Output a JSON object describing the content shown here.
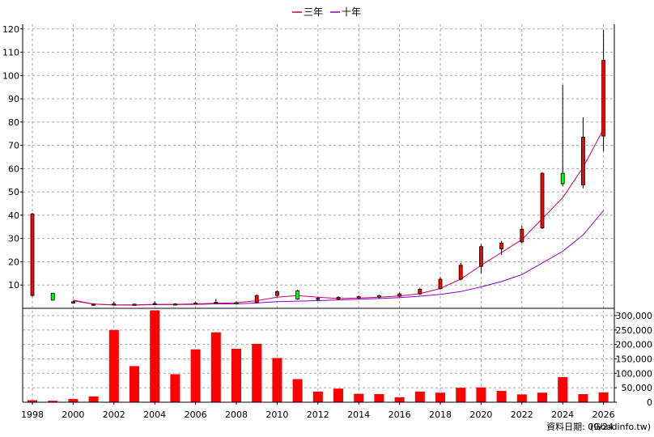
{
  "chart_data": [
    {
      "type": "candlestick",
      "legend": {
        "placement": "top-center",
        "entries": [
          "三年",
          "十年"
        ]
      },
      "x_ticks": [
        "1998",
        "2000",
        "2002",
        "2004",
        "2006",
        "2008",
        "2010",
        "2012",
        "2014",
        "2016",
        "2018",
        "2020",
        "2022",
        "2024",
        "2026"
      ],
      "y_ticks": [
        "10",
        "20",
        "30",
        "40",
        "50",
        "60",
        "70",
        "80",
        "90",
        "100",
        "110",
        "120"
      ],
      "ylim": [
        0,
        122
      ],
      "grid": true,
      "colors": {
        "up": "#ff0000",
        "down": "#00ff00",
        "ma3": "#cc0066",
        "ma10": "#8800cc"
      },
      "candles": [
        {
          "year": 1998,
          "open": 5.5,
          "close": 40.5,
          "high": 41,
          "low": 5
        },
        {
          "year": 1999,
          "open": 6.5,
          "close": 3.5,
          "high": 6.5,
          "low": 3.5
        },
        {
          "year": 2000,
          "open": 2.2,
          "close": 2.8,
          "high": 3.2,
          "low": 2.0
        },
        {
          "year": 2001,
          "open": 1.6,
          "close": 1.8,
          "high": 2.0,
          "low": 1.4
        },
        {
          "year": 2002,
          "open": 1.6,
          "close": 1.9,
          "high": 2.8,
          "low": 1.2
        },
        {
          "year": 2003,
          "open": 1.6,
          "close": 1.8,
          "high": 2.0,
          "low": 1.3
        },
        {
          "year": 2004,
          "open": 1.8,
          "close": 2.1,
          "high": 3.0,
          "low": 1.4
        },
        {
          "year": 2005,
          "open": 1.6,
          "close": 1.9,
          "high": 2.2,
          "low": 1.3
        },
        {
          "year": 2006,
          "open": 2.0,
          "close": 2.3,
          "high": 2.6,
          "low": 1.7
        },
        {
          "year": 2007,
          "open": 2.2,
          "close": 2.6,
          "high": 4.0,
          "low": 1.8
        },
        {
          "year": 2008,
          "open": 2.4,
          "close": 2.1,
          "high": 3.0,
          "low": 1.6
        },
        {
          "year": 2009,
          "open": 2.5,
          "close": 5.5,
          "high": 6.0,
          "low": 2.2
        },
        {
          "year": 2010,
          "open": 5.5,
          "close": 7.2,
          "high": 7.8,
          "low": 5.0
        },
        {
          "year": 2011,
          "open": 7.5,
          "close": 4.0,
          "high": 8.0,
          "low": 3.6
        },
        {
          "year": 2012,
          "open": 3.8,
          "close": 4.3,
          "high": 4.8,
          "low": 3.3
        },
        {
          "year": 2013,
          "open": 4.0,
          "close": 4.7,
          "high": 5.2,
          "low": 3.5
        },
        {
          "year": 2014,
          "open": 4.4,
          "close": 5.0,
          "high": 5.5,
          "low": 4.0
        },
        {
          "year": 2015,
          "open": 4.8,
          "close": 5.4,
          "high": 5.8,
          "low": 4.3
        },
        {
          "year": 2016,
          "open": 5.2,
          "close": 6.2,
          "high": 6.8,
          "low": 4.8
        },
        {
          "year": 2017,
          "open": 6.2,
          "close": 8.2,
          "high": 8.8,
          "low": 5.8
        },
        {
          "year": 2018,
          "open": 8.5,
          "close": 12.5,
          "high": 13.5,
          "low": 8.0
        },
        {
          "year": 2019,
          "open": 12.5,
          "close": 18.5,
          "high": 19.5,
          "low": 12.0
        },
        {
          "year": 2020,
          "open": 18.0,
          "close": 26.5,
          "high": 27.5,
          "low": 15.0
        },
        {
          "year": 2021,
          "open": 25.5,
          "close": 28.0,
          "high": 29.0,
          "low": 23.0
        },
        {
          "year": 2022,
          "open": 28.5,
          "close": 34.0,
          "high": 35.5,
          "low": 28.0
        },
        {
          "year": 2023,
          "open": 34.5,
          "close": 58.0,
          "high": 58.5,
          "low": 34.0
        },
        {
          "year": 2024,
          "open": 58.0,
          "close": 53.5,
          "high": 96.0,
          "low": 52.5
        },
        {
          "year": 2025,
          "open": 53.0,
          "close": 73.5,
          "high": 82.0,
          "low": 51.5
        },
        {
          "year": 2026,
          "open": 74.0,
          "close": 106.5,
          "high": 119.5,
          "low": 67.5
        }
      ],
      "ma3": [
        {
          "year": 2000,
          "value": 3.5
        },
        {
          "year": 2001,
          "value": 1.8
        },
        {
          "year": 2002,
          "value": 1.5
        },
        {
          "year": 2003,
          "value": 1.5
        },
        {
          "year": 2004,
          "value": 1.7
        },
        {
          "year": 2005,
          "value": 1.7
        },
        {
          "year": 2006,
          "value": 1.9
        },
        {
          "year": 2007,
          "value": 2.2
        },
        {
          "year": 2008,
          "value": 2.4
        },
        {
          "year": 2009,
          "value": 3.3
        },
        {
          "year": 2010,
          "value": 4.8
        },
        {
          "year": 2011,
          "value": 5.5
        },
        {
          "year": 2012,
          "value": 4.8
        },
        {
          "year": 2013,
          "value": 4.2
        },
        {
          "year": 2014,
          "value": 4.4
        },
        {
          "year": 2015,
          "value": 4.8
        },
        {
          "year": 2016,
          "value": 5.3
        },
        {
          "year": 2017,
          "value": 6.3
        },
        {
          "year": 2018,
          "value": 8.5
        },
        {
          "year": 2019,
          "value": 12.5
        },
        {
          "year": 2020,
          "value": 18.5
        },
        {
          "year": 2021,
          "value": 24.0
        },
        {
          "year": 2022,
          "value": 29.5
        },
        {
          "year": 2023,
          "value": 38.5
        },
        {
          "year": 2024,
          "value": 47.5
        },
        {
          "year": 2025,
          "value": 60.5
        },
        {
          "year": 2026,
          "value": 77.0
        }
      ],
      "ma10": [
        {
          "year": 2000,
          "value": 3.2
        },
        {
          "year": 2001,
          "value": 1.8
        },
        {
          "year": 2002,
          "value": 1.5
        },
        {
          "year": 2003,
          "value": 1.4
        },
        {
          "year": 2004,
          "value": 1.6
        },
        {
          "year": 2005,
          "value": 1.6
        },
        {
          "year": 2006,
          "value": 1.7
        },
        {
          "year": 2007,
          "value": 1.9
        },
        {
          "year": 2008,
          "value": 1.9
        },
        {
          "year": 2009,
          "value": 2.3
        },
        {
          "year": 2010,
          "value": 2.9
        },
        {
          "year": 2011,
          "value": 3.1
        },
        {
          "year": 2012,
          "value": 3.3
        },
        {
          "year": 2013,
          "value": 3.6
        },
        {
          "year": 2014,
          "value": 3.9
        },
        {
          "year": 2015,
          "value": 4.2
        },
        {
          "year": 2016,
          "value": 4.6
        },
        {
          "year": 2017,
          "value": 5.2
        },
        {
          "year": 2018,
          "value": 6.0
        },
        {
          "year": 2019,
          "value": 7.2
        },
        {
          "year": 2020,
          "value": 9.2
        },
        {
          "year": 2021,
          "value": 11.5
        },
        {
          "year": 2022,
          "value": 14.5
        },
        {
          "year": 2023,
          "value": 19.5
        },
        {
          "year": 2024,
          "value": 24.5
        },
        {
          "year": 2025,
          "value": 31.5
        },
        {
          "year": 2026,
          "value": 42.0
        }
      ]
    },
    {
      "type": "bar",
      "y_ticks": [
        "0",
        "50,000",
        "100,000",
        "150,000",
        "200,000",
        "250,000",
        "300,000"
      ],
      "ylim": [
        0,
        325000
      ],
      "grid": true,
      "color": "#ff0000",
      "bars": [
        {
          "year": 1998,
          "value": 7000
        },
        {
          "year": 1999,
          "value": 5000
        },
        {
          "year": 2000,
          "value": 11000
        },
        {
          "year": 2001,
          "value": 20000
        },
        {
          "year": 2002,
          "value": 250000
        },
        {
          "year": 2003,
          "value": 125000
        },
        {
          "year": 2004,
          "value": 318000
        },
        {
          "year": 2005,
          "value": 97000
        },
        {
          "year": 2006,
          "value": 183000
        },
        {
          "year": 2007,
          "value": 242000
        },
        {
          "year": 2008,
          "value": 185000
        },
        {
          "year": 2009,
          "value": 202000
        },
        {
          "year": 2010,
          "value": 153000
        },
        {
          "year": 2011,
          "value": 80000
        },
        {
          "year": 2012,
          "value": 37000
        },
        {
          "year": 2013,
          "value": 47000
        },
        {
          "year": 2014,
          "value": 29000
        },
        {
          "year": 2015,
          "value": 28000
        },
        {
          "year": 2016,
          "value": 17000
        },
        {
          "year": 2017,
          "value": 37000
        },
        {
          "year": 2018,
          "value": 33000
        },
        {
          "year": 2019,
          "value": 50000
        },
        {
          "year": 2020,
          "value": 51000
        },
        {
          "year": 2021,
          "value": 39000
        },
        {
          "year": 2022,
          "value": 27000
        },
        {
          "year": 2023,
          "value": 33000
        },
        {
          "year": 2024,
          "value": 87000
        },
        {
          "year": 2025,
          "value": 28000
        },
        {
          "year": 2026,
          "value": 34000
        }
      ]
    }
  ],
  "footer": {
    "date_label": "資料日期: 09/24",
    "source": "(Goodinfo.tw)"
  }
}
